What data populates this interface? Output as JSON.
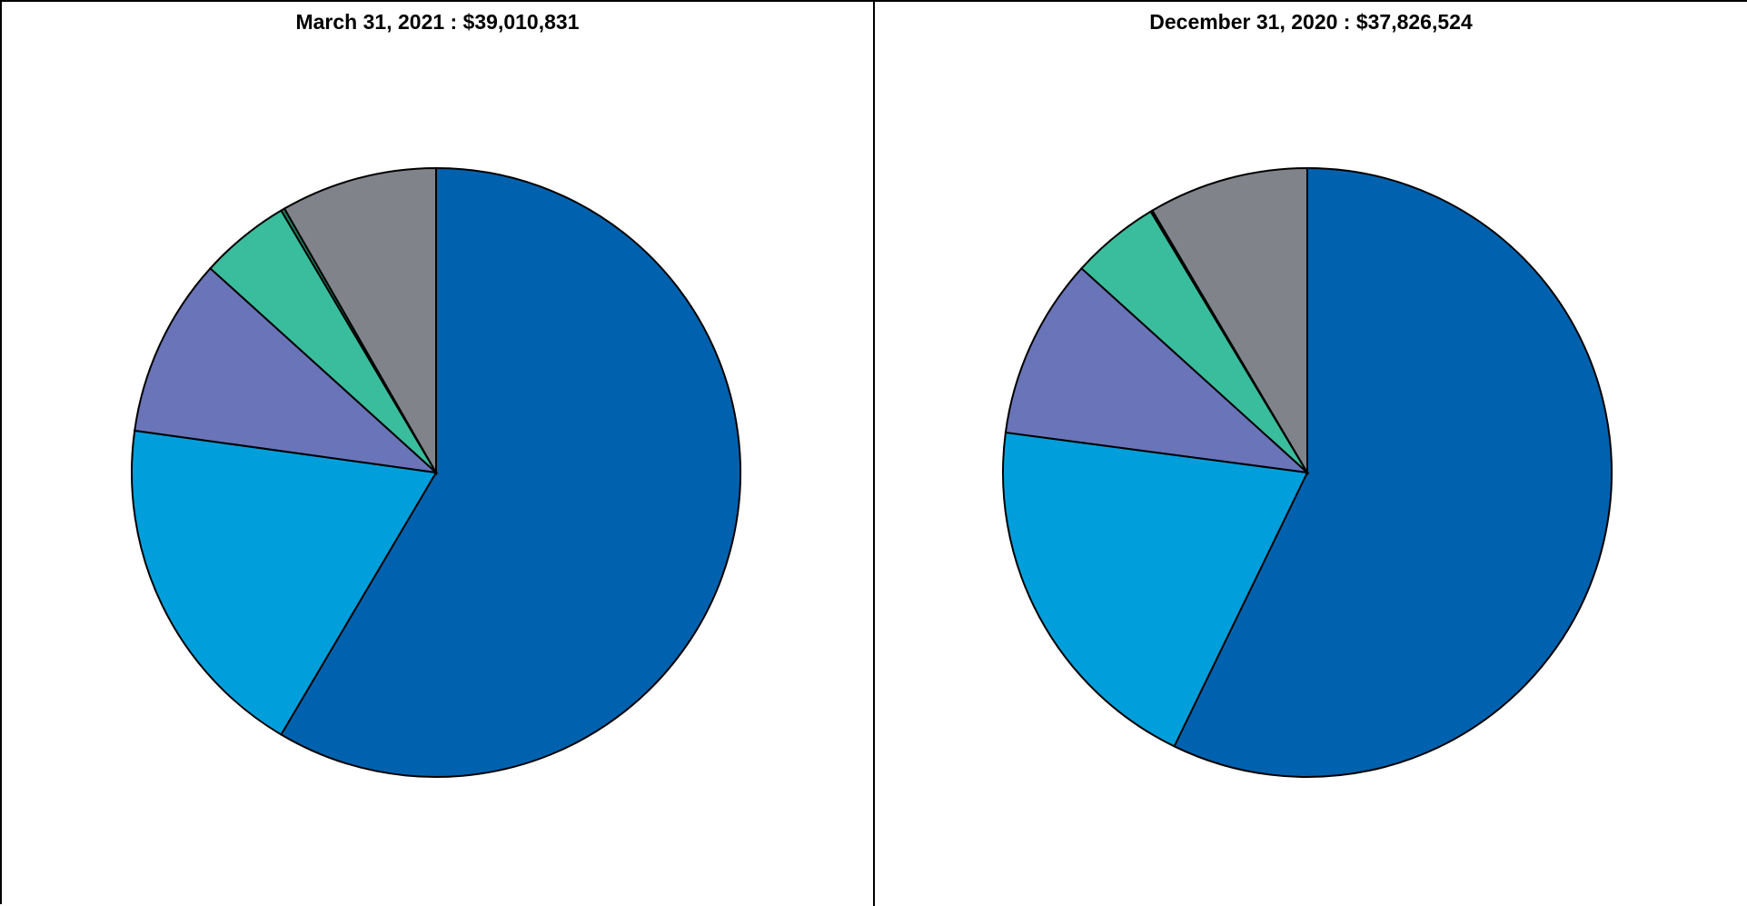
{
  "chart_data": [
    {
      "type": "pie",
      "title": "March 31, 2021 : $39,010,831",
      "slices": [
        {
          "value": 58.5,
          "color": "#0062AE"
        },
        {
          "value": 18.7,
          "color": "#009FDB"
        },
        {
          "value": 9.5,
          "color": "#6A74B8"
        },
        {
          "value": 4.8,
          "color": "#3ABD9C"
        },
        {
          "value": 0.2,
          "color": "#1E7B5C"
        },
        {
          "value": 8.3,
          "color": "#80838A"
        }
      ]
    },
    {
      "type": "pie",
      "title": "December 31, 2020 : $37,826,524",
      "slices": [
        {
          "value": 57.2,
          "color": "#0062AE"
        },
        {
          "value": 19.9,
          "color": "#009FDB"
        },
        {
          "value": 9.6,
          "color": "#6A74B8"
        },
        {
          "value": 4.7,
          "color": "#3ABD9C"
        },
        {
          "value": 0.1,
          "color": "#1E7B5C"
        },
        {
          "value": 8.5,
          "color": "#80838A"
        }
      ]
    }
  ]
}
